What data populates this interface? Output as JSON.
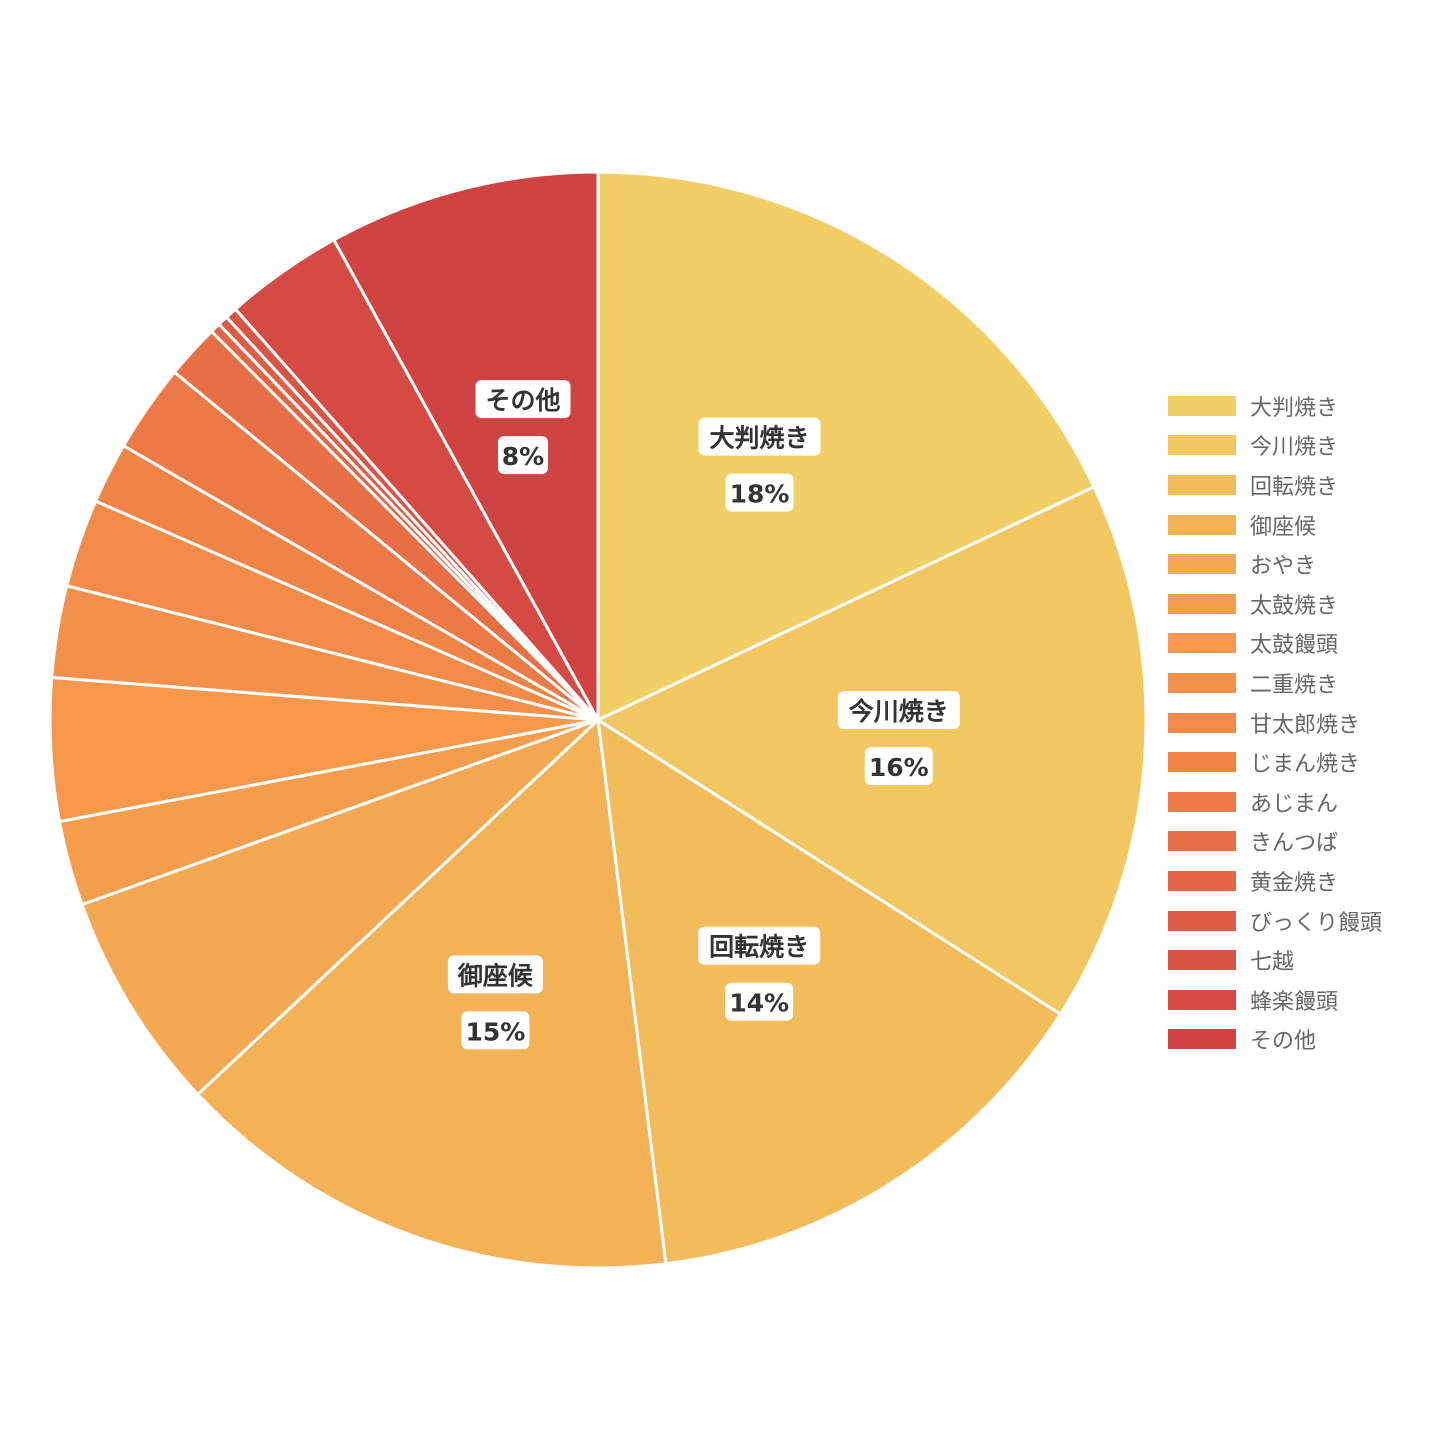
{
  "chart_data": {
    "type": "pie",
    "start": "top, clockwise",
    "slices": [
      {
        "name": "大判焼き",
        "value": 18,
        "label": "18%",
        "color": "#F1CF66"
      },
      {
        "name": "今川焼き",
        "value": 16,
        "label": "16%",
        "color": "#F2C660"
      },
      {
        "name": "回転焼き",
        "value": 14,
        "label": "14%",
        "color": "#F2BC5A"
      },
      {
        "name": "御座候",
        "value": 15,
        "label": "15%",
        "color": "#F2B255"
      },
      {
        "name": "おやき",
        "value": 6.5,
        "label": "",
        "color": "#F3A851"
      },
      {
        "name": "太鼓焼き",
        "value": 2.5,
        "label": "",
        "color": "#F49E4D"
      },
      {
        "name": "太鼓饅頭",
        "value": 4.2,
        "label": "",
        "color": "#F5984B"
      },
      {
        "name": "二重焼き",
        "value": 2.7,
        "label": "",
        "color": "#F4904A"
      },
      {
        "name": "甘太郎焼き",
        "value": 2.6,
        "label": "",
        "color": "#F28A48"
      },
      {
        "name": "じまん焼き",
        "value": 1.8,
        "label": "",
        "color": "#F08346"
      },
      {
        "name": "あじまん",
        "value": 2.6,
        "label": "",
        "color": "#EC7A46"
      },
      {
        "name": "きんつば",
        "value": 1.6,
        "label": "",
        "color": "#E86E45"
      },
      {
        "name": "黄金焼き",
        "value": 0.3,
        "label": "",
        "color": "#E36544"
      },
      {
        "name": "びっくり饅頭",
        "value": 0.3,
        "label": "",
        "color": "#DE5C43"
      },
      {
        "name": "七越",
        "value": 0.35,
        "label": "",
        "color": "#D95443"
      },
      {
        "name": "蜂楽饅頭",
        "value": 3.5,
        "label": "",
        "color": "#D54B43"
      },
      {
        "name": "その他",
        "value": 8,
        "label": "8%",
        "color": "#D04343"
      }
    ],
    "legend_position": "right"
  }
}
